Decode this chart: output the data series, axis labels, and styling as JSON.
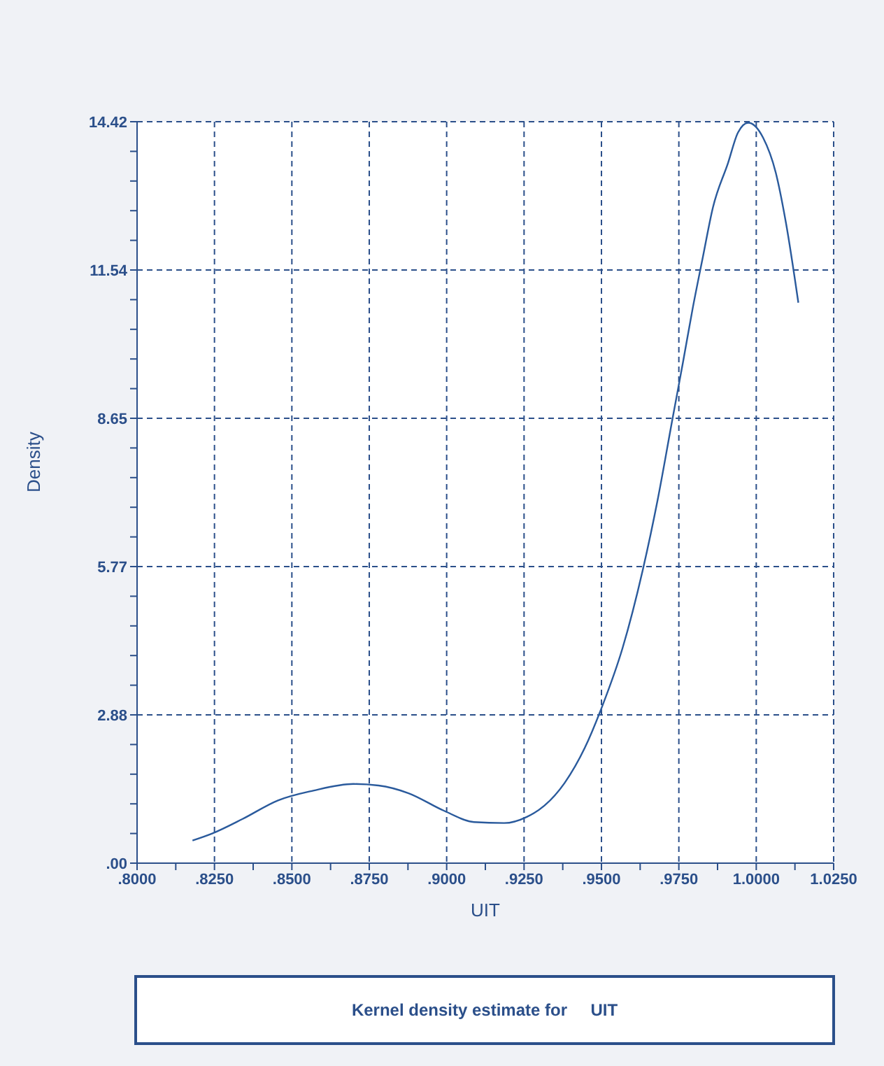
{
  "chart_data": {
    "type": "line",
    "xlabel": "UIT",
    "ylabel": "Density",
    "annotations": [
      "Kernel density estimate for     UIT"
    ],
    "x": [
      0.8179,
      0.8244,
      0.8341,
      0.8455,
      0.8569,
      0.8699,
      0.878,
      0.8877,
      0.8991,
      0.9088,
      0.9186,
      0.9259,
      0.9316,
      0.9381,
      0.9446,
      0.9503,
      0.9568,
      0.9633,
      0.9681,
      0.973,
      0.9763,
      0.9795,
      0.9827,
      0.986,
      0.9909,
      0.9941,
      0.9974,
      1.0022,
      1.0063,
      1.0096,
      1.0136
    ],
    "series": [
      {
        "color": "#2a5a9c",
        "values": [
          0.44,
          0.58,
          0.86,
          1.22,
          1.41,
          1.54,
          1.51,
          1.36,
          1.02,
          0.8,
          0.78,
          0.9,
          1.12,
          1.56,
          2.24,
          3.06,
          4.18,
          5.69,
          7.05,
          8.66,
          9.73,
          10.8,
          11.77,
          12.75,
          13.62,
          14.21,
          14.4,
          14.11,
          13.43,
          12.45,
          10.9
        ]
      }
    ],
    "xlim": [
      0.8,
      1.025
    ],
    "xticks": [
      {
        "value": 0.8,
        "label": ".8000"
      },
      {
        "value": 0.8125,
        "label": null
      },
      {
        "value": 0.825,
        "label": ".8250"
      },
      {
        "value": 0.8375,
        "label": null
      },
      {
        "value": 0.85,
        "label": ".8500"
      },
      {
        "value": 0.8625,
        "label": null
      },
      {
        "value": 0.875,
        "label": ".8750"
      },
      {
        "value": 0.8875,
        "label": null
      },
      {
        "value": 0.9,
        "label": ".9000"
      },
      {
        "value": 0.9125,
        "label": null
      },
      {
        "value": 0.925,
        "label": ".9250"
      },
      {
        "value": 0.9375,
        "label": null
      },
      {
        "value": 0.95,
        "label": ".9500"
      },
      {
        "value": 0.9625,
        "label": null
      },
      {
        "value": 0.975,
        "label": ".9750"
      },
      {
        "value": 0.9875,
        "label": null
      },
      {
        "value": 1.0,
        "label": "1.0000"
      },
      {
        "value": 1.0125,
        "label": null
      },
      {
        "value": 1.025,
        "label": "1.0250"
      }
    ],
    "ylim": [
      0,
      14.42
    ],
    "yticks": [
      {
        "value": 0,
        "label": ".00"
      },
      {
        "value": 0.5768,
        "label": null
      },
      {
        "value": 1.1536,
        "label": null
      },
      {
        "value": 1.7304,
        "label": null
      },
      {
        "value": 2.3072,
        "label": null
      },
      {
        "value": 2.884,
        "label": "2.88"
      },
      {
        "value": 3.4608,
        "label": null
      },
      {
        "value": 4.0376,
        "label": null
      },
      {
        "value": 4.6144,
        "label": null
      },
      {
        "value": 5.1912,
        "label": null
      },
      {
        "value": 5.768,
        "label": "5.77"
      },
      {
        "value": 6.3448,
        "label": null
      },
      {
        "value": 6.9216,
        "label": null
      },
      {
        "value": 7.4984,
        "label": null
      },
      {
        "value": 8.0752,
        "label": null
      },
      {
        "value": 8.652,
        "label": "8.65"
      },
      {
        "value": 9.2288,
        "label": null
      },
      {
        "value": 9.8056,
        "label": null
      },
      {
        "value": 10.3824,
        "label": null
      },
      {
        "value": 10.9592,
        "label": null
      },
      {
        "value": 11.536,
        "label": "11.54"
      },
      {
        "value": 12.1128,
        "label": null
      },
      {
        "value": 12.6896,
        "label": null
      },
      {
        "value": 13.2664,
        "label": null
      },
      {
        "value": 13.8432,
        "label": null
      },
      {
        "value": 14.42,
        "label": "14.42"
      }
    ],
    "grid": true,
    "legend": false,
    "marker": "none",
    "line_style": "solid"
  }
}
